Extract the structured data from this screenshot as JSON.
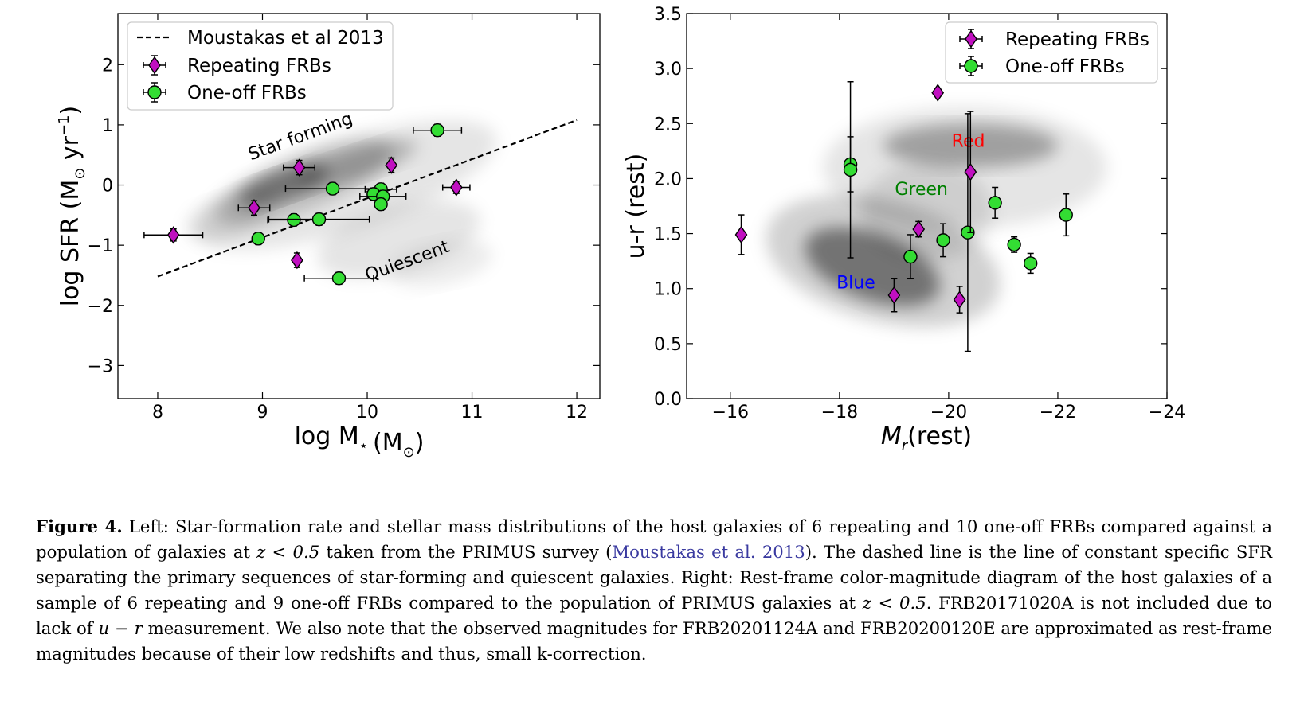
{
  "chart_data": [
    {
      "type": "scatter",
      "xlabel": "log M",
      "xlabel_sub": "⋆",
      "xlabel_unit": "(M",
      "xlabel_unit_sub": "⊙",
      "xlabel_close": ")",
      "ylabel": "log SFR (M",
      "ylabel_sub": "⊙",
      "ylabel_unit": " yr",
      "ylabel_sup": "−1",
      "ylabel_close": ")",
      "xlim": [
        7.62,
        12.22
      ],
      "ylim": [
        -3.55,
        2.85
      ],
      "xticks": [
        8,
        9,
        10,
        11,
        12
      ],
      "xtick_labels": [
        "8",
        "9",
        "10",
        "11",
        "12"
      ],
      "yticks": [
        -3,
        -2,
        -1,
        0,
        1,
        2
      ],
      "ytick_labels": [
        "−3",
        "−2",
        "−1",
        "0",
        "1",
        "2"
      ],
      "grid": false,
      "legend_position": "top-left",
      "legend": [
        "Moustakas et al 2013",
        "Repeating FRBs",
        "One-off FRBs"
      ],
      "line": {
        "name": "Moustakas et al 2013",
        "x": [
          8.0,
          12.0
        ],
        "y": [
          -1.52,
          1.08
        ],
        "style": "dashed"
      },
      "annotations": [
        {
          "text": "Star forming",
          "x": 9.38,
          "y": 0.72,
          "rotation": -20
        },
        {
          "text": "Quiescent",
          "x": 10.4,
          "y": -1.35,
          "rotation": -20
        }
      ],
      "series": [
        {
          "name": "Repeating FRBs",
          "marker": "diamond",
          "color": "#c010c0",
          "points": [
            {
              "x": 8.15,
              "y": -0.83,
              "xerr": 0.28,
              "yerr": 0.1
            },
            {
              "x": 8.92,
              "y": -0.38,
              "xerr": 0.15,
              "yerr": 0.12
            },
            {
              "x": 9.35,
              "y": 0.29,
              "xerr": 0.15,
              "yerr": 0.12
            },
            {
              "x": 9.33,
              "y": -1.25,
              "xerr": 0.03,
              "yerr": 0.12
            },
            {
              "x": 10.23,
              "y": 0.33,
              "xerr": 0.03,
              "yerr": 0.12
            },
            {
              "x": 10.85,
              "y": -0.04,
              "xerr": 0.13,
              "yerr": 0.1
            }
          ]
        },
        {
          "name": "One-off FRBs",
          "marker": "circle",
          "color": "#33dd33",
          "points": [
            {
              "x": 10.67,
              "y": 0.91,
              "xerr": 0.23,
              "yerr": 0.1
            },
            {
              "x": 9.67,
              "y": -0.06,
              "xerr": 0.45,
              "yerr": 0.1
            },
            {
              "x": 10.13,
              "y": -0.07,
              "xerr": 0.15,
              "yerr": 0.1
            },
            {
              "x": 10.06,
              "y": -0.15,
              "xerr": 0.06,
              "yerr": 0.1
            },
            {
              "x": 10.15,
              "y": -0.19,
              "xerr": 0.22,
              "yerr": 0.1
            },
            {
              "x": 10.13,
              "y": -0.32,
              "xerr": 0.05,
              "yerr": 0.1
            },
            {
              "x": 9.3,
              "y": -0.58,
              "xerr": 0.25,
              "yerr": 0.1
            },
            {
              "x": 9.54,
              "y": -0.57,
              "xerr": 0.48,
              "yerr": 0.1
            },
            {
              "x": 8.96,
              "y": -0.89,
              "xerr": 0.04,
              "yerr": 0.1
            },
            {
              "x": 9.73,
              "y": -1.55,
              "xerr": 0.33,
              "yerr": 0.1
            }
          ]
        }
      ]
    },
    {
      "type": "scatter",
      "xlabel": "M",
      "xlabel_sub": "r",
      "xlabel_unit": "(rest)",
      "ylabel": "u-r (rest)",
      "xlim": [
        -15.2,
        -24.0
      ],
      "ylim": [
        0.0,
        3.5
      ],
      "xticks": [
        -16,
        -18,
        -20,
        -22,
        -24
      ],
      "xtick_labels": [
        "−16",
        "−18",
        "−20",
        "−22",
        "−24"
      ],
      "yticks": [
        0.0,
        0.5,
        1.0,
        1.5,
        2.0,
        2.5,
        3.0,
        3.5
      ],
      "ytick_labels": [
        "0.0",
        "0.5",
        "1.0",
        "1.5",
        "2.0",
        "2.5",
        "3.0",
        "3.5"
      ],
      "grid": false,
      "legend_position": "top-right",
      "legend": [
        "Repeating FRBs",
        "One-off FRBs"
      ],
      "annotations": [
        {
          "text": "Red",
          "x": -20.36,
          "y": 2.29,
          "color": "#ff0000"
        },
        {
          "text": "Green",
          "x": -19.5,
          "y": 1.85,
          "color": "#008000"
        },
        {
          "text": "Blue",
          "x": -18.3,
          "y": 1.0,
          "color": "#0000ff"
        }
      ],
      "series": [
        {
          "name": "Repeating FRBs",
          "marker": "diamond",
          "color": "#c010c0",
          "points": [
            {
              "x": -16.2,
              "y": 1.49,
              "yerr": 0.18
            },
            {
              "x": -19.8,
              "y": 2.78,
              "yerr": 0.0
            },
            {
              "x": -20.4,
              "y": 2.06,
              "yerr": 0.55
            },
            {
              "x": -19.45,
              "y": 1.54,
              "yerr": 0.07
            },
            {
              "x": -19.0,
              "y": 0.94,
              "yerr": 0.15
            },
            {
              "x": -20.2,
              "y": 0.9,
              "yerr": 0.12
            }
          ]
        },
        {
          "name": "One-off FRBs",
          "marker": "circle",
          "color": "#33dd33",
          "points": [
            {
              "x": -18.2,
              "y": 2.13,
              "yerr": 0.25
            },
            {
              "x": -18.2,
              "y": 2.08,
              "yerr": 0.8
            },
            {
              "x": -19.3,
              "y": 1.29,
              "yerr": 0.2
            },
            {
              "x": -19.9,
              "y": 1.44,
              "yerr": 0.15
            },
            {
              "x": -20.35,
              "y": 1.51,
              "yerr": 1.08
            },
            {
              "x": -20.85,
              "y": 1.78,
              "yerr": 0.14
            },
            {
              "x": -21.2,
              "y": 1.4,
              "yerr": 0.07
            },
            {
              "x": -21.5,
              "y": 1.23,
              "yerr": 0.09
            },
            {
              "x": -22.15,
              "y": 1.67,
              "yerr": 0.19
            }
          ]
        }
      ]
    }
  ],
  "caption": {
    "label": "Figure 4.",
    "p1": " Left: Star-formation rate and stellar mass distributions of the host galaxies of 6 repeating and 10 one-off FRBs compared against a population of galaxies at ",
    "m1": "z < 0.5",
    "p2": " taken from the PRIMUS survey (",
    "cite": "Moustakas et al. 2013",
    "p3": "). The dashed line is the line of constant specific SFR separating the primary sequences of star-forming and quiescent galaxies. Right: Rest-frame color-magnitude diagram of the host galaxies of a sample of 6 repeating and 9 one-off FRBs compared to the population of PRIMUS galaxies at ",
    "m2": "z < 0.5",
    "p4": ". FRB20171020A is not included due to lack of ",
    "m3": "u − r",
    "p5": " measurement. We also note that the observed magnitudes for FRB20201124A and FRB20200120E are approximated as rest-frame magnitudes because of their low redshifts and thus, small k-correction."
  }
}
